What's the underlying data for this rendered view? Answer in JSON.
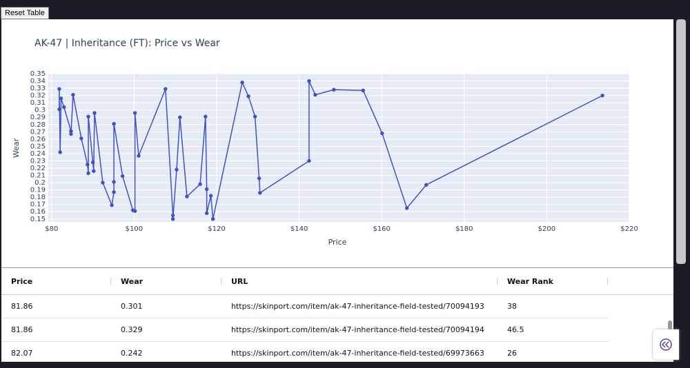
{
  "button": "Reset Table",
  "chart_data": {
    "type": "line",
    "title": "AK-47 | Inheritance (FT): Price vs Wear",
    "x_label": "Price",
    "y_label": "Wear",
    "series": [
      {
        "color": "#4150c8",
        "x": [
          81.86,
          81.86,
          82.07,
          82.3,
          83.0,
          84.7,
          84.7,
          85.2,
          87.2,
          88.7,
          88.9,
          88.9,
          90.0,
          90.2,
          90.4,
          92.4,
          94.6,
          95.1,
          95.1,
          95.1,
          97.2,
          99.7,
          100.2,
          100.2,
          101.1,
          107.6,
          109.4,
          109.4,
          110.3,
          111.1,
          112.8,
          116.0,
          117.3,
          117.6,
          117.6,
          118.6,
          119.1,
          126.2,
          127.7,
          129.3,
          130.3,
          130.5,
          142.4,
          142.4,
          143.9,
          148.4,
          155.5,
          160.1,
          166.1,
          170.8,
          213.5
        ],
        "values": [
          0.301,
          0.329,
          0.242,
          0.316,
          0.304,
          0.271,
          0.267,
          0.321,
          0.261,
          0.225,
          0.213,
          0.291,
          0.228,
          0.216,
          0.296,
          0.2,
          0.169,
          0.187,
          0.201,
          0.281,
          0.209,
          0.162,
          0.161,
          0.296,
          0.237,
          0.329,
          0.155,
          0.15,
          0.218,
          0.29,
          0.181,
          0.198,
          0.291,
          0.191,
          0.158,
          0.182,
          0.15,
          0.338,
          0.319,
          0.291,
          0.206,
          0.186,
          0.23,
          0.34,
          0.321,
          0.328,
          0.327,
          0.268,
          0.165,
          0.197,
          0.32
        ]
      }
    ],
    "xlim": [
      79.2,
      220
    ],
    "xticks": [
      {
        "value": 80,
        "label": "$80"
      },
      {
        "value": 100,
        "label": "$100"
      },
      {
        "value": 120,
        "label": "$120"
      },
      {
        "value": 140,
        "label": "$140"
      },
      {
        "value": 160,
        "label": "$160"
      },
      {
        "value": 180,
        "label": "$180"
      },
      {
        "value": 200,
        "label": "$200"
      },
      {
        "value": 220,
        "label": "$220"
      }
    ],
    "ylim": [
      0.146,
      0.35
    ],
    "yticks": [
      0.15,
      0.16,
      0.17,
      0.18,
      0.19,
      0.2,
      0.21,
      0.22,
      0.23,
      0.24,
      0.25,
      0.26,
      0.27,
      0.28,
      0.29,
      0.3,
      0.31,
      0.32,
      0.33,
      0.34,
      0.35
    ],
    "grid": true
  },
  "table": {
    "headers": [
      "Price",
      "Wear",
      "URL",
      "Wear Rank"
    ],
    "rows": [
      [
        81.86,
        0.301,
        "https://skinport.com/item/ak-47-inheritance-field-tested/70094193",
        38
      ],
      [
        81.86,
        0.329,
        "https://skinport.com/item/ak-47-inheritance-field-tested/70094194",
        46.5
      ],
      [
        82.07,
        0.242,
        "https://skinport.com/item/ak-47-inheritance-field-tested/69973663",
        26
      ]
    ]
  }
}
